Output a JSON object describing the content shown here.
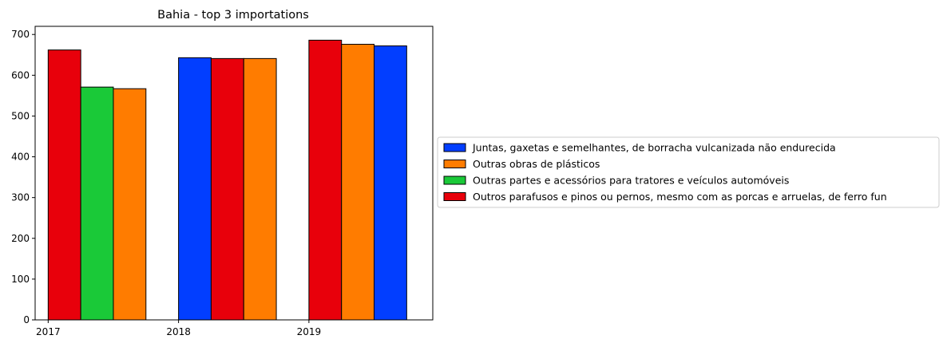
{
  "chart_data": {
    "type": "bar",
    "title": "Bahia - top 3 importations",
    "xlabel": "",
    "ylabel": "",
    "ylim": [
      0,
      720
    ],
    "yticks": [
      0,
      100,
      200,
      300,
      400,
      500,
      600,
      700
    ],
    "grid": false,
    "legend_position": "right",
    "groups": [
      {
        "year": "2017",
        "bars": [
          {
            "series": "Outros parafusos e pinos ou pernos, mesmo com as porcas e arruelas, de ferro fun",
            "value": 662
          },
          {
            "series": "Outras partes e acessórios para tratores e veículos automóveis",
            "value": 571
          },
          {
            "series": "Outras obras de plásticos",
            "value": 567
          }
        ]
      },
      {
        "year": "2018",
        "bars": [
          {
            "series": "Juntas, gaxetas e semelhantes, de borracha vulcanizada não endurecida",
            "value": 643
          },
          {
            "series": "Outros parafusos e pinos ou pernos, mesmo com as porcas e arruelas, de ferro fun",
            "value": 641
          },
          {
            "series": "Outras obras de plásticos",
            "value": 641
          }
        ]
      },
      {
        "year": "2019",
        "bars": [
          {
            "series": "Outros parafusos e pinos ou pernos, mesmo com as porcas e arruelas, de ferro fun",
            "value": 686
          },
          {
            "series": "Outras obras de plásticos",
            "value": 676
          },
          {
            "series": "Juntas, gaxetas e semelhantes, de borracha vulcanizada não endurecida",
            "value": 672
          }
        ]
      }
    ],
    "series": [
      {
        "name": "Juntas, gaxetas e semelhantes, de borracha vulcanizada não endurecida",
        "color": "#023eff"
      },
      {
        "name": "Outras obras de plásticos",
        "color": "#ff7c00"
      },
      {
        "name": "Outras partes e acessórios para tratores e veículos automóveis",
        "color": "#1ac938"
      },
      {
        "name": "Outros parafusos e pinos ou pernos, mesmo com as porcas e arruelas, de ferro fun",
        "color": "#e8000b"
      }
    ]
  }
}
